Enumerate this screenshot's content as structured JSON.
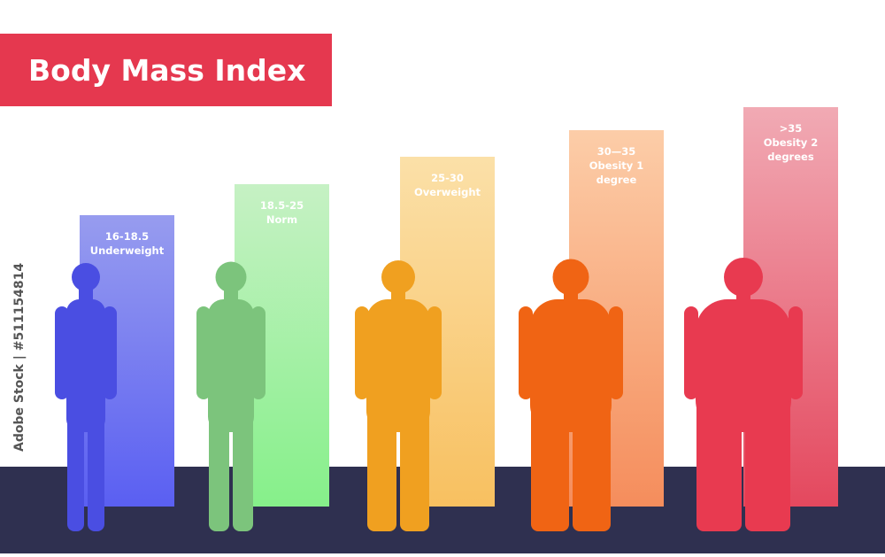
{
  "header": {
    "title": "Body Mass Index"
  },
  "watermark": "Adobe Stock | #511154814",
  "categories": [
    {
      "range": "16-18.5",
      "name": [
        "Underweight"
      ]
    },
    {
      "range": "18.5-25",
      "name": [
        "Norm"
      ]
    },
    {
      "range": "25-30",
      "name": [
        "Overweight"
      ]
    },
    {
      "range": "30—35",
      "name": [
        "Obesity 1",
        "degree"
      ]
    },
    {
      "range": ">35",
      "name": [
        "Obesity 2",
        "degrees"
      ]
    }
  ]
}
